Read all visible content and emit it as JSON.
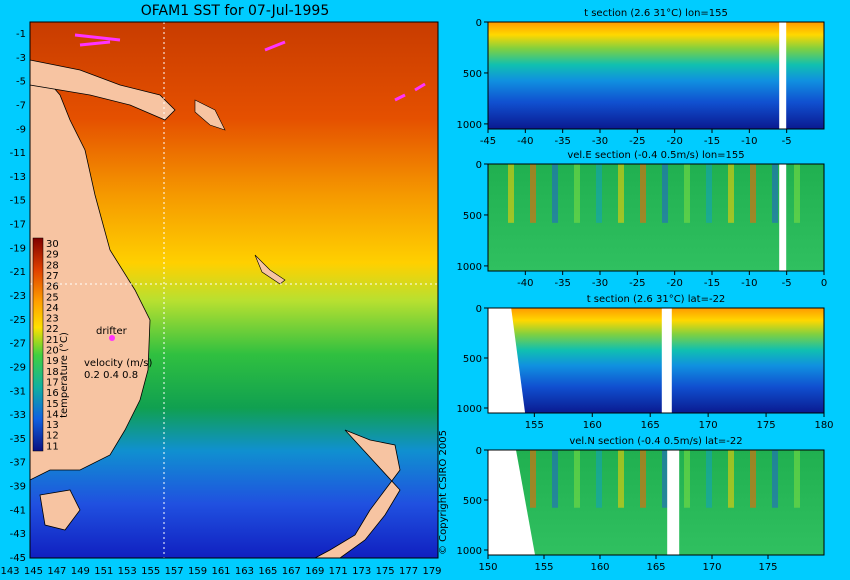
{
  "map": {
    "title": "OFAM1 SST for 07-Jul-1995",
    "lat_ticks": [
      "-1",
      "-3",
      "-5",
      "-7",
      "-9",
      "-11",
      "-13",
      "-15",
      "-17",
      "-19",
      "-21",
      "-23",
      "-25",
      "-27",
      "-29",
      "-31",
      "-33",
      "-35",
      "-37",
      "-39",
      "-41",
      "-43",
      "-45"
    ],
    "lon_ticks": [
      "143",
      "145",
      "147",
      "149",
      "151",
      "153",
      "155",
      "157",
      "159",
      "161",
      "163",
      "165",
      "167",
      "169",
      "171",
      "173",
      "175",
      "177",
      "179"
    ],
    "colorbar": {
      "label": "temperature (°C)",
      "values": [
        "30",
        "29",
        "28",
        "27",
        "26",
        "25",
        "24",
        "23",
        "22",
        "21",
        "20",
        "19",
        "18",
        "17",
        "16",
        "15",
        "14",
        "13",
        "12",
        "11"
      ]
    },
    "drifter_label": "drifter",
    "velocity_label": "velocity (m/s)",
    "velocity_scale": "0.2 0.4 0.8",
    "copyright": "© Copyright CSIRO 2005",
    "colors": {
      "land": "#f7c4a2",
      "background": "#00ccff",
      "drifter": "#ff33ff"
    }
  },
  "chart_data": [
    {
      "type": "heatmap",
      "title": "t section (2.6     31°C) lon=155",
      "x_ticks": [
        -45,
        -40,
        -35,
        -30,
        -25,
        -20,
        -15,
        -10,
        -5
      ],
      "y_ticks": [
        0,
        500,
        1000
      ],
      "xlim": [
        -45,
        0
      ],
      "ylim": [
        0,
        1050
      ],
      "kind": "temp"
    },
    {
      "type": "heatmap",
      "title": "vel.E section (-0.4     0.5m/s) lon=155",
      "x_ticks": [
        -40,
        -35,
        -30,
        -25,
        -20,
        -15,
        -10,
        -5,
        0
      ],
      "y_ticks": [
        0,
        500,
        1000
      ],
      "xlim": [
        -45,
        0
      ],
      "ylim": [
        0,
        1050
      ],
      "kind": "vel"
    },
    {
      "type": "heatmap",
      "title": "t section (2.6     31°C) lat=-22",
      "x_ticks": [
        155,
        160,
        165,
        170,
        175,
        180
      ],
      "y_ticks": [
        0,
        500,
        1000
      ],
      "xlim": [
        151,
        180
      ],
      "ylim": [
        0,
        1050
      ],
      "kind": "temp"
    },
    {
      "type": "heatmap",
      "title": "vel.N section (-0.4     0.5m/s) lat=-22",
      "x_ticks": [
        150,
        155,
        160,
        165,
        170,
        175
      ],
      "y_ticks": [
        0,
        500,
        1000
      ],
      "xlim": [
        150,
        180
      ],
      "ylim": [
        0,
        1050
      ],
      "kind": "vel"
    }
  ]
}
